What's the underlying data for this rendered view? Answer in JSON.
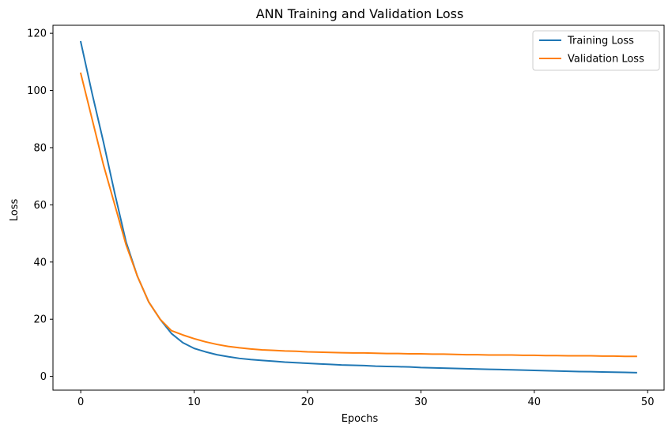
{
  "chart_data": {
    "type": "line",
    "title": "ANN Training and Validation Loss",
    "xlabel": "Epochs",
    "ylabel": "Loss",
    "xlim": [
      -2.45,
      51.45
    ],
    "ylim": [
      -4.8,
      122.8
    ],
    "xticks": [
      0,
      10,
      20,
      30,
      40,
      50
    ],
    "yticks": [
      0,
      20,
      40,
      60,
      80,
      100,
      120
    ],
    "grid": false,
    "legend_position": "top-right",
    "x": [
      0,
      1,
      2,
      3,
      4,
      5,
      6,
      7,
      8,
      9,
      10,
      11,
      12,
      13,
      14,
      15,
      16,
      17,
      18,
      19,
      20,
      21,
      22,
      23,
      24,
      25,
      26,
      27,
      28,
      29,
      30,
      31,
      32,
      33,
      34,
      35,
      36,
      37,
      38,
      39,
      40,
      41,
      42,
      43,
      44,
      45,
      46,
      47,
      48,
      49
    ],
    "series": [
      {
        "name": "Training Loss",
        "color": "#1f77b4",
        "values": [
          117,
          99,
          82,
          64,
          47,
          35,
          26,
          20,
          15,
          11.8,
          9.8,
          8.6,
          7.6,
          6.9,
          6.3,
          5.9,
          5.6,
          5.3,
          5.0,
          4.8,
          4.6,
          4.4,
          4.2,
          4.0,
          3.9,
          3.8,
          3.6,
          3.5,
          3.4,
          3.3,
          3.1,
          3.0,
          2.9,
          2.8,
          2.7,
          2.6,
          2.5,
          2.4,
          2.3,
          2.2,
          2.1,
          2.0,
          1.9,
          1.8,
          1.7,
          1.65,
          1.55,
          1.5,
          1.4,
          1.3
        ]
      },
      {
        "name": "Validation Loss",
        "color": "#ff7f0e",
        "values": [
          106,
          90,
          74,
          60,
          46,
          35,
          26,
          20,
          16,
          14.5,
          13.2,
          12.1,
          11.2,
          10.5,
          10.0,
          9.6,
          9.3,
          9.1,
          8.9,
          8.8,
          8.6,
          8.5,
          8.4,
          8.3,
          8.2,
          8.2,
          8.1,
          8.0,
          8.0,
          7.9,
          7.9,
          7.8,
          7.8,
          7.7,
          7.6,
          7.6,
          7.5,
          7.5,
          7.5,
          7.4,
          7.4,
          7.3,
          7.3,
          7.2,
          7.2,
          7.2,
          7.1,
          7.1,
          7.0,
          7.0
        ]
      }
    ]
  }
}
